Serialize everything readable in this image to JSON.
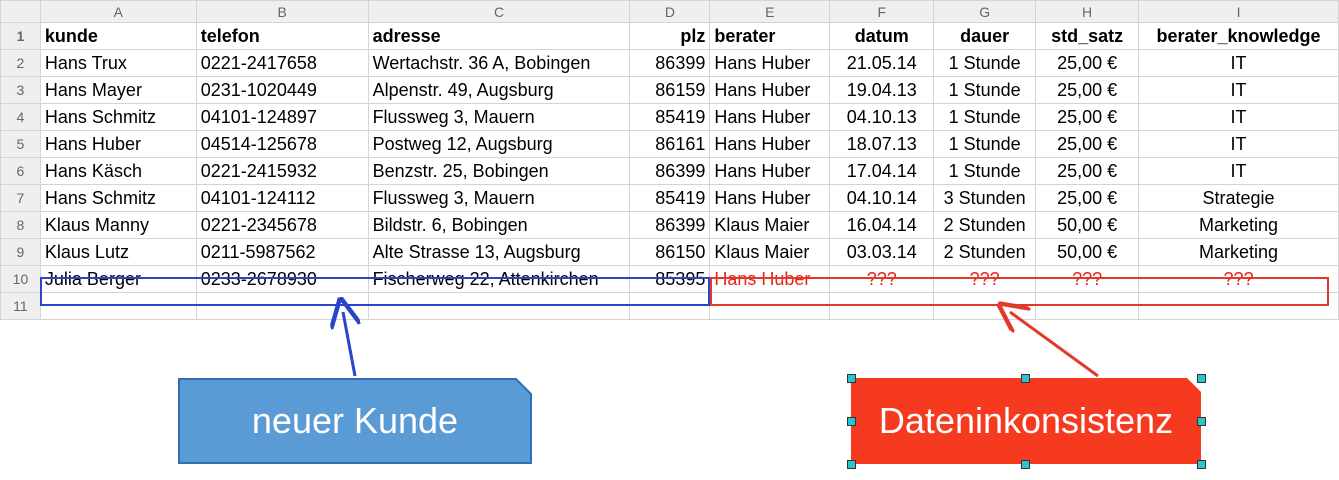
{
  "columns": [
    "A",
    "B",
    "C",
    "D",
    "E",
    "F",
    "G",
    "H",
    "I"
  ],
  "rows": [
    {
      "num": "1",
      "cells": [
        "kunde",
        "telefon",
        "adresse",
        "plz",
        "berater",
        "datum",
        "dauer",
        "std_satz",
        "berater_knowledge"
      ]
    },
    {
      "num": "2",
      "cells": [
        "Hans Trux",
        "0221-2417658",
        "Wertachstr. 36 A, Bobingen",
        "86399",
        "Hans Huber",
        "21.05.14",
        "1 Stunde",
        "25,00 €",
        "IT"
      ]
    },
    {
      "num": "3",
      "cells": [
        "Hans Mayer",
        "0231-1020449",
        "Alpenstr. 49, Augsburg",
        "86159",
        "Hans Huber",
        "19.04.13",
        "1 Stunde",
        "25,00 €",
        "IT"
      ]
    },
    {
      "num": "4",
      "cells": [
        "Hans Schmitz",
        "04101-124897",
        "Flussweg 3, Mauern",
        "85419",
        "Hans Huber",
        "04.10.13",
        "1 Stunde",
        "25,00 €",
        "IT"
      ]
    },
    {
      "num": "5",
      "cells": [
        "Hans Huber",
        "04514-125678",
        "Postweg 12, Augsburg",
        "86161",
        "Hans Huber",
        "18.07.13",
        "1 Stunde",
        "25,00 €",
        "IT"
      ]
    },
    {
      "num": "6",
      "cells": [
        "Hans Käsch",
        "0221-2415932",
        "Benzstr. 25, Bobingen",
        "86399",
        "Hans Huber",
        "17.04.14",
        "1 Stunde",
        "25,00 €",
        "IT"
      ]
    },
    {
      "num": "7",
      "cells": [
        "Hans Schmitz",
        "04101-124112",
        "Flussweg 3, Mauern",
        "85419",
        "Hans Huber",
        "04.10.14",
        "3 Stunden",
        "25,00 €",
        "Strategie"
      ]
    },
    {
      "num": "8",
      "cells": [
        "Klaus Manny",
        "0221-2345678",
        "Bildstr. 6, Bobingen",
        "86399",
        "Klaus Maier",
        "16.04.14",
        "2 Stunden",
        "50,00 €",
        "Marketing"
      ]
    },
    {
      "num": "9",
      "cells": [
        "Klaus Lutz",
        "0211-5987562",
        "Alte Strasse 13, Augsburg",
        "86150",
        "Klaus Maier",
        "03.03.14",
        "2 Stunden",
        "50,00 €",
        "Marketing"
      ]
    },
    {
      "num": "10",
      "cells": [
        "Julia Berger",
        "0233-2678930",
        "Fischerweg 22, Attenkirchen",
        "85395",
        "Hans Huber",
        "???",
        "???",
        "???",
        "???"
      ]
    },
    {
      "num": "11",
      "cells": [
        "",
        "",
        "",
        "",
        "",
        "",
        "",
        "",
        ""
      ]
    }
  ],
  "callouts": {
    "new_customer": "neuer Kunde",
    "inconsistency": "Dateninkonsistenz"
  },
  "colors": {
    "new_customer": "#2a44c9",
    "inconsistency": "#e8231a",
    "callout_blue_fill": "#5b9bd5",
    "callout_red_fill": "#f53a20"
  }
}
